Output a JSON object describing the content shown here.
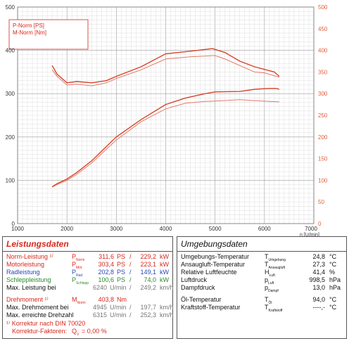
{
  "chart_data": {
    "type": "line",
    "title": "",
    "xlabel": "n [U/min]",
    "x_range": [
      1000,
      7000
    ],
    "x_ticks": [
      "1000",
      "2000",
      "3000",
      "4000",
      "5000",
      "6000",
      "7000"
    ],
    "y_left_range": [
      0,
      500
    ],
    "y_left_ticks": [
      "0",
      "100",
      "200",
      "300",
      "400",
      "500"
    ],
    "y_right_range": [
      0,
      500
    ],
    "y_right_ticks": [
      "0",
      "50",
      "100",
      "150",
      "200",
      "250",
      "300",
      "350",
      "400",
      "450",
      "500"
    ],
    "y_right_color": "#e0603a",
    "grid": true,
    "legend": [
      "P-Norm [PS]",
      "M-Norm [Nm]"
    ],
    "legend_position": "top-left",
    "series": [
      {
        "name": "P-Norm [PS]",
        "axis": "left",
        "color": "#d8432a",
        "x": [
          1700,
          1800,
          2000,
          2200,
          2500,
          3000,
          3500,
          4000,
          4400,
          4800,
          5000,
          5500,
          5800,
          6100,
          6240,
          6300
        ],
        "y": [
          85,
          92,
          103,
          118,
          145,
          200,
          240,
          275,
          290,
          300,
          304,
          305,
          310,
          312,
          312,
          310
        ]
      },
      {
        "name": "",
        "axis": "left",
        "color": "#e37a6a",
        "x": [
          1700,
          1800,
          2000,
          2200,
          2500,
          3000,
          3500,
          4000,
          4400,
          4800,
          5000,
          5500,
          5800,
          6100,
          6300
        ],
        "y": [
          84,
          90,
          100,
          114,
          140,
          193,
          235,
          265,
          278,
          282,
          283,
          286,
          284,
          282,
          281
        ]
      },
      {
        "name": "M-Norm [Nm]",
        "axis": "right",
        "color": "#d8432a",
        "x": [
          1700,
          1800,
          2000,
          2200,
          2500,
          2800,
          3000,
          3500,
          4000,
          4500,
          4945,
          5200,
          5500,
          5800,
          6000,
          6200,
          6300
        ],
        "y": [
          365,
          345,
          325,
          328,
          325,
          330,
          340,
          362,
          392,
          398,
          404,
          395,
          375,
          362,
          356,
          350,
          340
        ]
      },
      {
        "name": "",
        "axis": "right",
        "color": "#e37a6a",
        "x": [
          1700,
          1800,
          2000,
          2200,
          2500,
          2800,
          3000,
          3500,
          4000,
          4500,
          5000,
          5200,
          5500,
          5800,
          6000,
          6300
        ],
        "y": [
          355,
          340,
          320,
          322,
          318,
          325,
          335,
          355,
          380,
          385,
          388,
          380,
          365,
          350,
          348,
          338
        ]
      }
    ]
  },
  "leistung": {
    "title": "Leistungsdaten",
    "rows": [
      {
        "label": "Norm-Leistung ¹⁾",
        "sym": "P",
        "sub": "Norm",
        "v1": "311,6",
        "u1": "PS",
        "sep": "/",
        "v2": "229,2",
        "u2": "kW",
        "color": "red"
      },
      {
        "label": "Motorleistung",
        "sym": "P",
        "sub": "Mot",
        "v1": "303,4",
        "u1": "PS",
        "sep": "/",
        "v2": "223,1",
        "u2": "kW",
        "color": "red"
      },
      {
        "label": "Radleistung",
        "sym": "P",
        "sub": "Rad",
        "v1": "202,8",
        "u1": "PS",
        "sep": "/",
        "v2": "149,1",
        "u2": "kW",
        "color": "blue"
      },
      {
        "label": "Schleppleistung",
        "sym": "P",
        "sub": "Schlepp",
        "v1": "100,6",
        "u1": "PS",
        "sep": "/",
        "v2": "74,0",
        "u2": "kW",
        "color": "green"
      },
      {
        "label": "Max. Leistung bei",
        "sym": "",
        "sub": "",
        "v1": "6240",
        "u1": "U/min",
        "sep": "/",
        "v2": "249,2",
        "u2": "km/h",
        "color": "blk"
      },
      {
        "label": "Drehmoment ¹⁾",
        "sym": "M",
        "sub": "Norm",
        "v1": "403,8",
        "u1": "Nm",
        "sep": "",
        "v2": "",
        "u2": "",
        "color": "red"
      },
      {
        "label": "Max. Drehmoment bei",
        "sym": "",
        "sub": "",
        "v1": "4945",
        "u1": "U/min",
        "sep": "/",
        "v2": "197,7",
        "u2": "km/h",
        "color": "blk"
      },
      {
        "label": "Max. erreichte Drehzahl",
        "sym": "",
        "sub": "",
        "v1": "6315",
        "u1": "U/min",
        "sep": "/",
        "v2": "252,3",
        "u2": "km/h",
        "color": "blk"
      }
    ],
    "footnote1": "¹⁾ Korrektur nach DIN 70020",
    "footnote2_label": "Korrektur-Faktoren:",
    "footnote2_sym": "Q",
    "footnote2_sub": "V",
    "footnote2_value": "=  0,00 %"
  },
  "umgebung": {
    "title": "Umgebungsdaten",
    "rows": [
      {
        "label": "Umgebungs-Temperatur",
        "sym": "T",
        "sub": "Umgebung",
        "value": "24,8",
        "unit": "°C"
      },
      {
        "label": "Ansaugluft-Temperatur",
        "sym": "T",
        "sub": "Ansaugluft",
        "value": "27,3",
        "unit": "°C"
      },
      {
        "label": "Relative Luftfeuchte",
        "sym": "H",
        "sub": "Luft",
        "value": "41,4",
        "unit": "%"
      },
      {
        "label": "Luftdruck",
        "sym": "p",
        "sub": "Luft",
        "value": "998,5",
        "unit": "hPa"
      },
      {
        "label": "Dampfdruck",
        "sym": "p",
        "sub": "Dampf",
        "value": "13,0",
        "unit": "hPa"
      },
      {
        "label": "Öl-Temperatur",
        "sym": "T",
        "sub": "Öl",
        "value": "94,0",
        "unit": "°C"
      },
      {
        "label": "Kraftstoff-Temperatur",
        "sym": "T",
        "sub": "Kraftstoff",
        "value": "----,-",
        "unit": "°C"
      }
    ]
  }
}
